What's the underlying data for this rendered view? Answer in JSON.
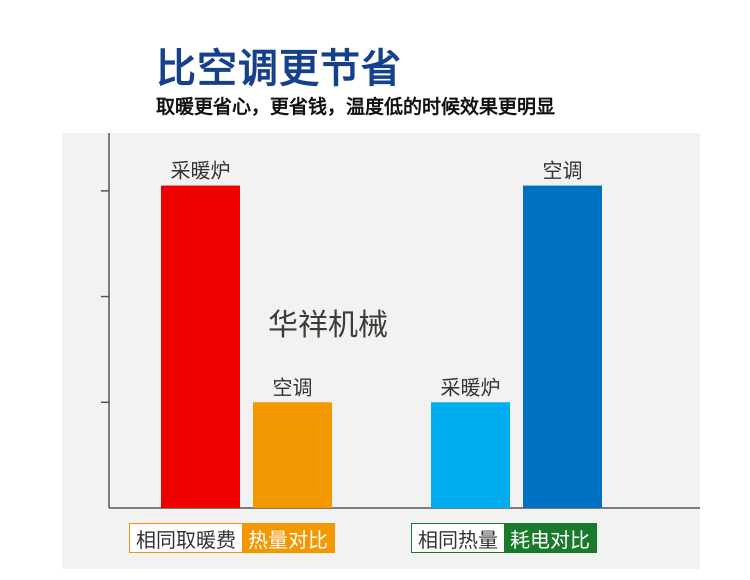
{
  "header": {
    "title": "比空调更节省",
    "subtitle": "取暖更省心，更省钱，温度低的时候效果更明显"
  },
  "watermark": "华祥机械",
  "legends": [
    {
      "left": "相同取暖费",
      "right": "热量对比",
      "color": "#f39800"
    },
    {
      "left": "相同热量",
      "right": "耗电对比",
      "color": "#1a7a2b"
    }
  ],
  "chart_data": {
    "type": "bar",
    "groups": [
      "相同取暖费 热量对比",
      "相同热量 耗电对比"
    ],
    "bars": [
      {
        "label": "采暖炉",
        "value": 3.05,
        "color": "#ee0000",
        "group": 0
      },
      {
        "label": "空调",
        "value": 1.0,
        "color": "#f39800",
        "group": 0
      },
      {
        "label": "采暖炉",
        "value": 1.0,
        "color": "#00aeef",
        "group": 1
      },
      {
        "label": "空调",
        "value": 3.05,
        "color": "#0070c0",
        "group": 1
      }
    ],
    "ylim": [
      0,
      3.5
    ],
    "yticks": [
      1,
      2,
      3
    ],
    "ytick_labels_shown": false,
    "grid": false
  }
}
